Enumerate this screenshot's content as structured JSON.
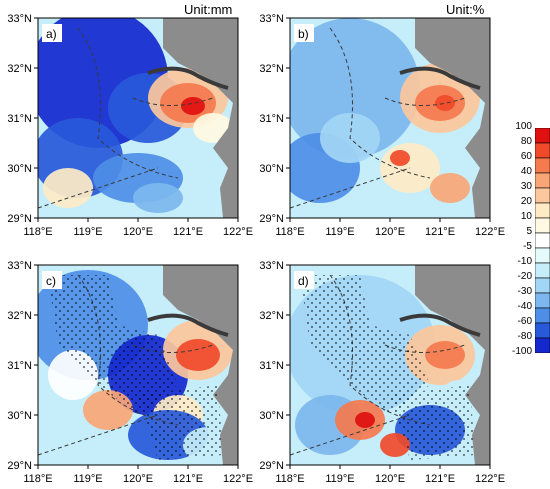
{
  "units": {
    "left": "Unit:mm",
    "right": "Unit:%"
  },
  "panels": [
    {
      "label": "a)",
      "stippled": false
    },
    {
      "label": "b)",
      "stippled": false
    },
    {
      "label": "c)",
      "stippled": true
    },
    {
      "label": "d)",
      "stippled": true
    }
  ],
  "lat_ticks": [
    "33°N",
    "32°N",
    "31°N",
    "30°N",
    "29°N"
  ],
  "lon_ticks": [
    "118°E",
    "119°E",
    "120°E",
    "121°E",
    "122°E"
  ],
  "colorbar": {
    "labels": [
      "100",
      "80",
      "60",
      "40",
      "30",
      "20",
      "10",
      "5",
      "-5",
      "-10",
      "-20",
      "-30",
      "-40",
      "-60",
      "-80",
      "-100"
    ],
    "colors": [
      "#e01010",
      "#f04a2a",
      "#f57a4e",
      "#f9a676",
      "#fcc79c",
      "#feebc6",
      "#fff8e2",
      "#ffffff",
      "#e5fbfb",
      "#c6eefa",
      "#a2d6f5",
      "#7cb7ee",
      "#4d8ee6",
      "#2859da",
      "#1428ce"
    ]
  },
  "colors": {
    "land_gray": "#8c8c8c",
    "coast": "#3a3a3a"
  }
}
